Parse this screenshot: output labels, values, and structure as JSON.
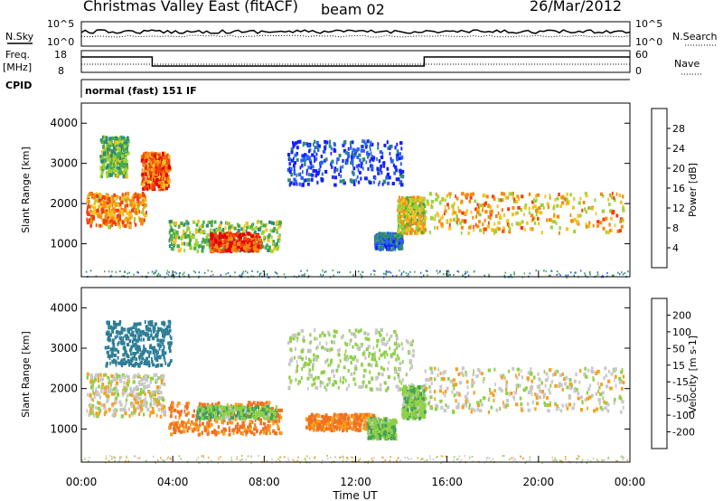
{
  "header": {
    "station": "Christmas Valley East (fitACF)",
    "beam": "beam 02",
    "date": "26/Mar/2012"
  },
  "status_panels": {
    "nsky_label": "N.Sky",
    "nsky_ticks": [
      "10^5",
      "10^0"
    ],
    "nsearch_label": "N.Search",
    "nsearch_ticks": [
      "10^5",
      "10^0"
    ],
    "freq_label_1": "Freq.",
    "freq_label_2": "[MHz]",
    "freq_ticks": [
      "18",
      "8"
    ],
    "nave_label": "Nave",
    "nave_ticks": [
      "60",
      "0"
    ],
    "cpid_label": "CPID",
    "cpid_value": "normal (fast) 151 IF"
  },
  "chart_data": [
    {
      "type": "heatmap",
      "panel": "power",
      "ylabel": "Slant Range [km]",
      "yticks": [
        "1000",
        "2000",
        "3000",
        "4000"
      ],
      "yrange": [
        180,
        4500
      ],
      "xrange_hours": [
        0,
        24
      ],
      "colorbar_label": "Power [dB]",
      "colorbar_ticks": [
        "4",
        "8",
        "12",
        "16",
        "20",
        "24",
        "28"
      ],
      "colorbar_colors": [
        "#1420ff",
        "#2a60ff",
        "#2f8a78",
        "#4caa48",
        "#9cd23a",
        "#f4c21e",
        "#f68a10",
        "#f04010",
        "#e10000"
      ],
      "regions": [
        {
          "t": [
            0.2,
            2.8
          ],
          "r": [
            1450,
            2300
          ],
          "db": 22
        },
        {
          "t": [
            0.8,
            2.0
          ],
          "r": [
            2700,
            3700
          ],
          "db": 14
        },
        {
          "t": [
            2.6,
            3.8
          ],
          "r": [
            2400,
            3300
          ],
          "db": 24
        },
        {
          "t": [
            3.8,
            8.7
          ],
          "r": [
            850,
            1600
          ],
          "db": 14
        },
        {
          "t": [
            5.6,
            7.8
          ],
          "r": [
            850,
            1300
          ],
          "db": 26
        },
        {
          "t": [
            9.0,
            14.0
          ],
          "r": [
            2500,
            3600
          ],
          "db": 5
        },
        {
          "t": [
            12.8,
            14.0
          ],
          "r": [
            900,
            1300
          ],
          "db": 8
        },
        {
          "t": [
            13.8,
            15.0
          ],
          "r": [
            1300,
            2200
          ],
          "db": 18
        },
        {
          "t": [
            15.0,
            23.7
          ],
          "r": [
            1300,
            2300
          ],
          "db": 20
        }
      ]
    },
    {
      "type": "heatmap",
      "panel": "velocity",
      "ylabel": "Slant Range [km]",
      "yticks": [
        "1000",
        "2000",
        "3000",
        "4000"
      ],
      "yrange": [
        180,
        4500
      ],
      "xrange_hours": [
        0,
        24
      ],
      "colorbar_label": "Velocity [m s-1]",
      "colorbar_ticks": [
        "200",
        "100",
        "50",
        "15",
        "-15",
        "-50",
        "-100",
        "-200"
      ],
      "colorbar_colors": [
        "#1420c0",
        "#2e7e96",
        "#42a05a",
        "#90d048",
        "#c8c8c8",
        "#f6a020",
        "#f37020",
        "#f04010",
        "#e00000"
      ],
      "regions": [
        {
          "t": [
            0.2,
            3.6
          ],
          "r": [
            1350,
            2400
          ],
          "v": 0
        },
        {
          "t": [
            1.0,
            3.9
          ],
          "r": [
            2600,
            3700
          ],
          "v": 150
        },
        {
          "t": [
            3.8,
            8.7
          ],
          "r": [
            900,
            1700
          ],
          "v": -60
        },
        {
          "t": [
            5.0,
            8.5
          ],
          "r": [
            1300,
            1600
          ],
          "v": 40
        },
        {
          "t": [
            9.8,
            12.8
          ],
          "r": [
            1000,
            1400
          ],
          "v": -60
        },
        {
          "t": [
            9.0,
            14.5
          ],
          "r": [
            2000,
            3500
          ],
          "v": 20
        },
        {
          "t": [
            12.5,
            13.7
          ],
          "r": [
            800,
            1300
          ],
          "v": 40
        },
        {
          "t": [
            14.0,
            15.0
          ],
          "r": [
            1300,
            2100
          ],
          "v": 40
        },
        {
          "t": [
            15.0,
            23.7
          ],
          "r": [
            1450,
            2550
          ],
          "v": 0
        }
      ]
    }
  ],
  "xaxis": {
    "label": "Time UT",
    "ticks": [
      "00:00",
      "04:00",
      "08:00",
      "12:00",
      "16:00",
      "20:00",
      "00:00"
    ]
  }
}
